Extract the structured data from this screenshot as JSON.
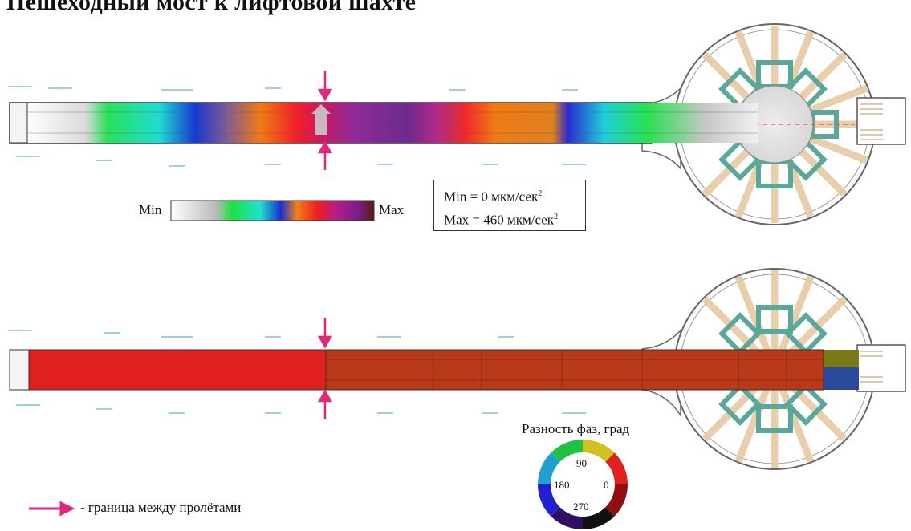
{
  "title": "Пешеходный мост к лифтовой шахте",
  "colorbar": {
    "min_label": "Min",
    "max_label": "Max"
  },
  "range_box": {
    "min_text": "Min = 0 мкм/сек",
    "min_sup": "2",
    "max_text": "Max = 460 мкм/сек",
    "max_sup": "2"
  },
  "phase_wheel": {
    "title": "Разность фаз, град",
    "labels": {
      "top": "90",
      "left": "180",
      "right": "0",
      "bottom": "270"
    }
  },
  "legend": {
    "arrow_text": "- граница между пролётами",
    "arrow_color": "#e0297a"
  },
  "colors": {
    "phase_red": "#e02020",
    "phase_dark_red": "#b83a1a",
    "bridge_outline": "#333333",
    "frame_teal": "#5aa89a",
    "beam_tan": "#e6c9a3"
  }
}
